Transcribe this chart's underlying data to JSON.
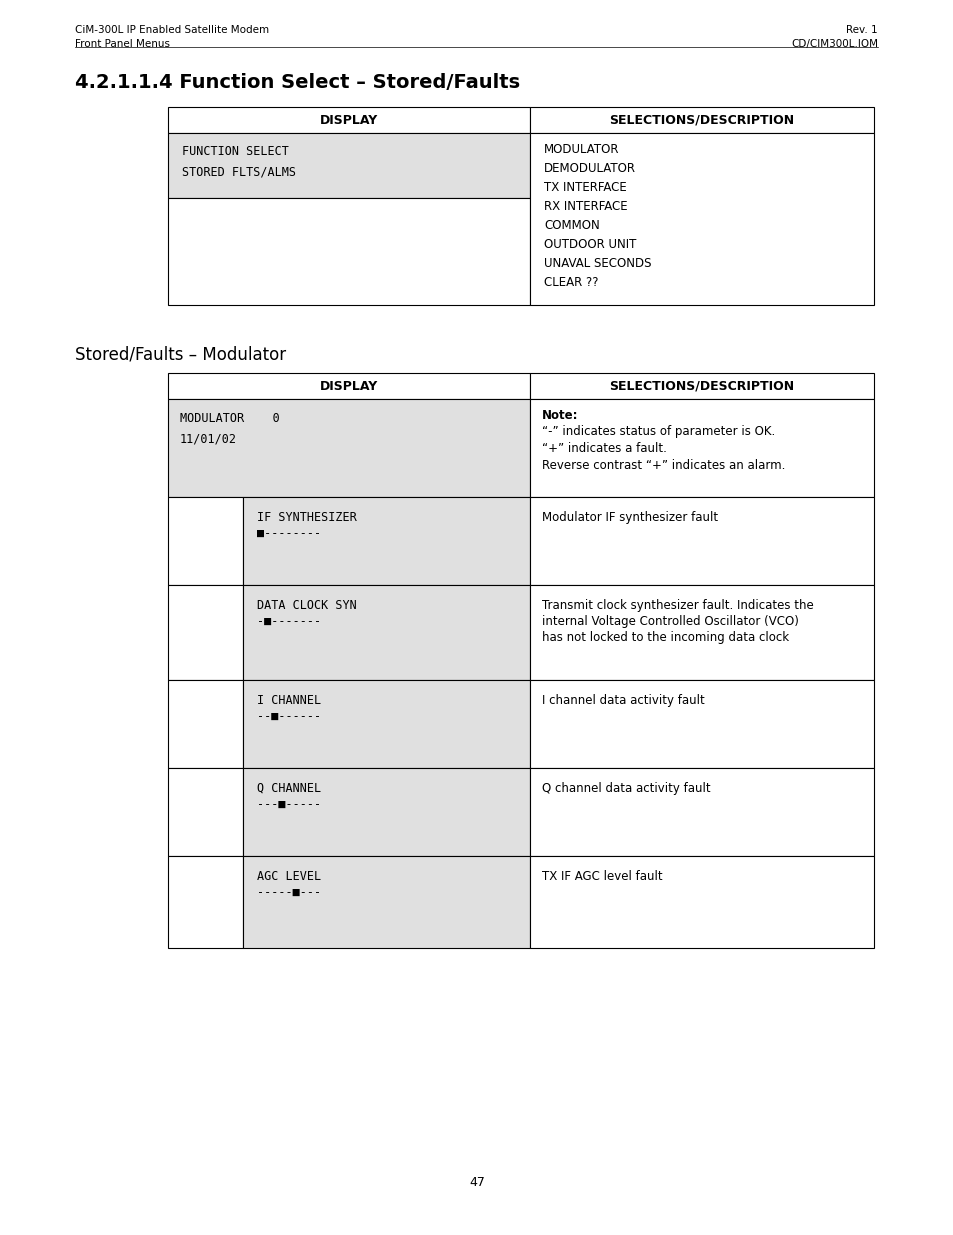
{
  "header_left_line1": "CiM-300L IP Enabled Satellite Modem",
  "header_left_line2": "Front Panel Menus",
  "header_right_line1": "Rev. 1",
  "header_right_line2": "CD/CIM300L.IOM",
  "section1_title": "4.2.1.1.4 Function Select – Stored/Faults",
  "table1_col1_header": "DISPLAY",
  "table1_col2_header": "SELECTIONS/DESCRIPTION",
  "table1_display_text": "FUNCTION SELECT\nSTORED FLTS/ALMS",
  "table1_selections": [
    "MODULATOR",
    "DEMODULATOR",
    "TX INTERFACE",
    "RX INTERFACE",
    "COMMON",
    "OUTDOOR UNIT",
    "UNAVAL SECONDS",
    "CLEAR ??"
  ],
  "section2_title": "Stored/Faults – Modulator",
  "table2_col1_header": "DISPLAY",
  "table2_col2_header": "SELECTIONS/DESCRIPTION",
  "table2_row1_display": "MODULATOR    0\n11/01/02",
  "table2_row1_desc_bold": "Note:",
  "table2_row1_desc_lines": [
    "“-” indicates status of parameter is OK.",
    "“+” indicates a fault.",
    "Reverse contrast “+” indicates an alarm."
  ],
  "table2_rows": [
    {
      "display_line1": "IF SYNTHESIZER",
      "display_line2": "■--------",
      "desc": "Modulator IF synthesizer fault"
    },
    {
      "display_line1": "DATA CLOCK SYN",
      "display_line2": "-■-------",
      "desc": "Transmit clock synthesizer fault. Indicates the internal Voltage Controlled Oscillator (VCO) has not locked to the incoming data clock"
    },
    {
      "display_line1": "I CHANNEL",
      "display_line2": "--■------",
      "desc": "I channel data activity fault"
    },
    {
      "display_line1": "Q CHANNEL",
      "display_line2": "---■-----",
      "desc": "Q channel data activity fault"
    },
    {
      "display_line1": "AGC LEVEL",
      "display_line2": "-----■---",
      "desc": "TX IF AGC level fault"
    }
  ],
  "page_number": "47",
  "bg_color": "#ffffff",
  "cell_bg": "#e0e0e0",
  "border_color": "#000000"
}
